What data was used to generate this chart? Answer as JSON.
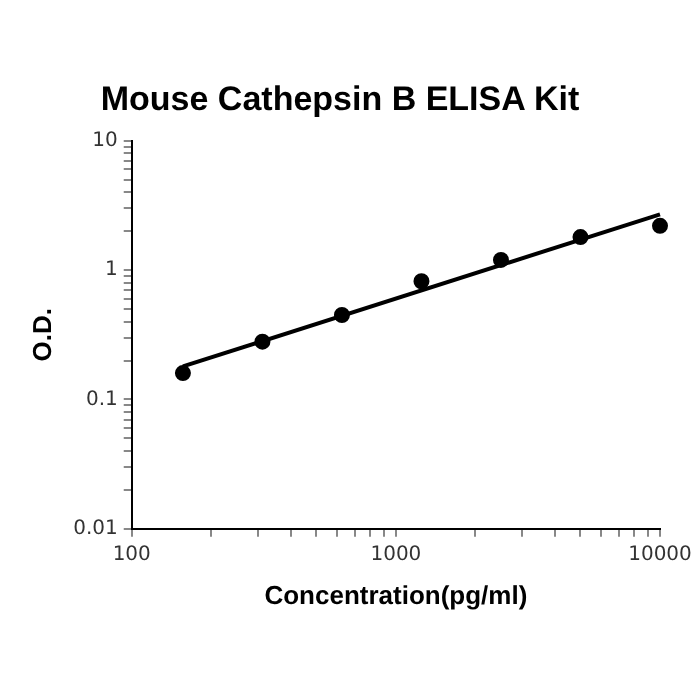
{
  "chart_data": {
    "type": "scatter",
    "title": "Mouse Cathepsin B ELISA Kit",
    "xlabel": "Concentration(pg/ml)",
    "ylabel": "O.D.",
    "log": "xy",
    "grid": false,
    "legend": false,
    "xlim": [
      100,
      10000
    ],
    "xticks": [
      100,
      {
        "value": 200,
        "label": null
      },
      {
        "value": 300,
        "label": null
      },
      {
        "value": 400,
        "label": null
      },
      {
        "value": 500,
        "label": null
      },
      {
        "value": 600,
        "label": null
      },
      {
        "value": 700,
        "label": null
      },
      {
        "value": 800,
        "label": null
      },
      {
        "value": 900,
        "label": null
      },
      1000,
      {
        "value": 2000,
        "label": null
      },
      {
        "value": 3000,
        "label": null
      },
      {
        "value": 4000,
        "label": null
      },
      {
        "value": 5000,
        "label": null
      },
      {
        "value": 6000,
        "label": null
      },
      {
        "value": 7000,
        "label": null
      },
      {
        "value": 8000,
        "label": null
      },
      {
        "value": 9000,
        "label": null
      },
      10000
    ],
    "ylim": [
      0.01,
      10
    ],
    "yticks": [
      0.01,
      {
        "value": 0.02,
        "label": null
      },
      {
        "value": 0.03,
        "label": null
      },
      {
        "value": 0.04,
        "label": null
      },
      {
        "value": 0.05,
        "label": null
      },
      {
        "value": 0.06,
        "label": null
      },
      {
        "value": 0.07,
        "label": null
      },
      {
        "value": 0.08,
        "label": null
      },
      {
        "value": 0.09,
        "label": null
      },
      0.1,
      {
        "value": 0.2,
        "label": null
      },
      {
        "value": 0.3,
        "label": null
      },
      {
        "value": 0.4,
        "label": null
      },
      {
        "value": 0.5,
        "label": null
      },
      {
        "value": 0.6,
        "label": null
      },
      {
        "value": 0.7,
        "label": null
      },
      {
        "value": 0.8,
        "label": null
      },
      {
        "value": 0.9,
        "label": null
      },
      1,
      {
        "value": 2,
        "label": null
      },
      {
        "value": 3,
        "label": null
      },
      {
        "value": 4,
        "label": null
      },
      {
        "value": 5,
        "label": null
      },
      {
        "value": 6,
        "label": null
      },
      {
        "value": 7,
        "label": null
      },
      {
        "value": 8,
        "label": null
      },
      {
        "value": 9,
        "label": null
      },
      10
    ],
    "series": [
      {
        "type": "scatter",
        "color": "#000000",
        "marker": "circle",
        "x": [
          156.25,
          312.5,
          625,
          1250,
          2500,
          5000,
          10000
        ],
        "values": [
          0.16,
          0.28,
          0.45,
          0.82,
          1.2,
          1.8,
          2.2
        ]
      },
      {
        "type": "line",
        "color": "#000000",
        "marker": "none",
        "line_style": "solid",
        "x": [
          156.25,
          10000
        ],
        "values": [
          0.18,
          2.7
        ]
      }
    ]
  }
}
